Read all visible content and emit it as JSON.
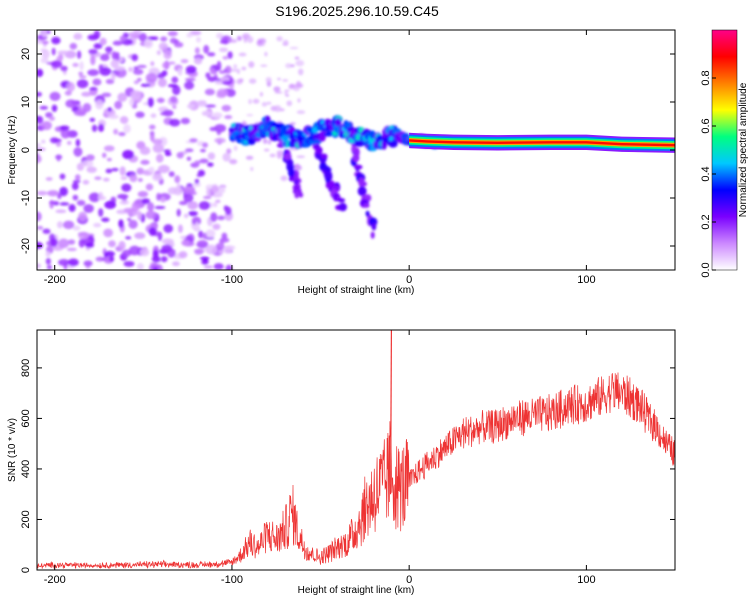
{
  "title": "S196.2025.296.10.59.C45",
  "chart_data": [
    {
      "type": "heatmap",
      "name": "spectrogram",
      "xlabel": "Height of straight line (km)",
      "ylabel": "Frequency (Hz)",
      "xlim": [
        -210,
        150
      ],
      "ylim": [
        -25,
        25
      ],
      "xticks": [
        -200,
        -100,
        0,
        100
      ],
      "yticks": [
        -20,
        -10,
        0,
        10,
        20
      ],
      "colorbar": {
        "label": "Normalized spectral amplitude",
        "range": [
          0.0,
          1.0
        ],
        "ticks": [
          0.0,
          0.2,
          0.4,
          0.6,
          0.8
        ],
        "tick_labels": [
          "0.0",
          "0.2",
          "0.4",
          "0.6",
          "0.8"
        ],
        "colors": [
          "#ffffff",
          "#cc88ff",
          "#7a00ff",
          "#0000ff",
          "#00c8ff",
          "#00ff80",
          "#ffff00",
          "#ff8000",
          "#ff0000",
          "#ff0088"
        ]
      },
      "features": [
        {
          "name": "noise",
          "x_range": [
            -210,
            -100
          ],
          "freq_range": [
            -25,
            25
          ],
          "amplitude": 0.1
        },
        {
          "name": "main-signal",
          "points": [
            [
              -100,
              4
            ],
            [
              -90,
              3
            ],
            [
              -80,
              5
            ],
            [
              -70,
              3
            ],
            [
              -60,
              2
            ],
            [
              -50,
              4
            ],
            [
              -40,
              5
            ],
            [
              -30,
              3
            ],
            [
              -20,
              2
            ],
            [
              -10,
              3
            ],
            [
              0,
              2
            ],
            [
              10,
              1.8
            ],
            [
              25,
              1.6
            ],
            [
              50,
              1.5
            ],
            [
              80,
              1.6
            ],
            [
              100,
              1.6
            ],
            [
              120,
              1.2
            ],
            [
              150,
              1.0
            ]
          ]
        },
        {
          "name": "branch-1",
          "points": [
            [
              -72,
              2
            ],
            [
              -66,
              -4
            ],
            [
              -62,
              -10
            ]
          ]
        },
        {
          "name": "branch-2",
          "points": [
            [
              -52,
              1
            ],
            [
              -45,
              -6
            ],
            [
              -38,
              -12
            ]
          ]
        },
        {
          "name": "branch-3",
          "points": [
            [
              -32,
              2
            ],
            [
              -26,
              -8
            ],
            [
              -20,
              -18
            ]
          ]
        }
      ]
    },
    {
      "type": "line",
      "name": "snr",
      "xlabel": "Height of straight line (km)",
      "ylabel": "SNR (10 * v/v)",
      "xlim": [
        -210,
        150
      ],
      "ylim": [
        0,
        950
      ],
      "xticks": [
        -200,
        -100,
        0,
        100
      ],
      "yticks": [
        0,
        200,
        400,
        600,
        800
      ],
      "color": "#ee3333",
      "series": [
        {
          "name": "SNR",
          "x": [
            -210,
            -200,
            -180,
            -160,
            -140,
            -120,
            -105,
            -100,
            -95,
            -90,
            -85,
            -80,
            -75,
            -70,
            -66,
            -62,
            -58,
            -54,
            -50,
            -45,
            -40,
            -35,
            -30,
            -25,
            -20,
            -15,
            -12,
            -10,
            -8,
            -5,
            0,
            5,
            10,
            20,
            30,
            40,
            50,
            60,
            70,
            80,
            90,
            100,
            110,
            115,
            120,
            125,
            130,
            135,
            140,
            145,
            150
          ],
          "y": [
            15,
            20,
            18,
            20,
            22,
            20,
            25,
            30,
            60,
            110,
            90,
            140,
            120,
            160,
            230,
            130,
            80,
            60,
            50,
            70,
            90,
            110,
            160,
            240,
            300,
            330,
            360,
            420,
            340,
            320,
            350,
            390,
            420,
            480,
            540,
            560,
            570,
            600,
            610,
            620,
            650,
            660,
            690,
            710,
            700,
            680,
            650,
            600,
            560,
            500,
            460
          ]
        },
        {
          "name": "spike",
          "x": [
            -10.5,
            -10
          ],
          "y": [
            300,
            950
          ]
        }
      ]
    }
  ]
}
